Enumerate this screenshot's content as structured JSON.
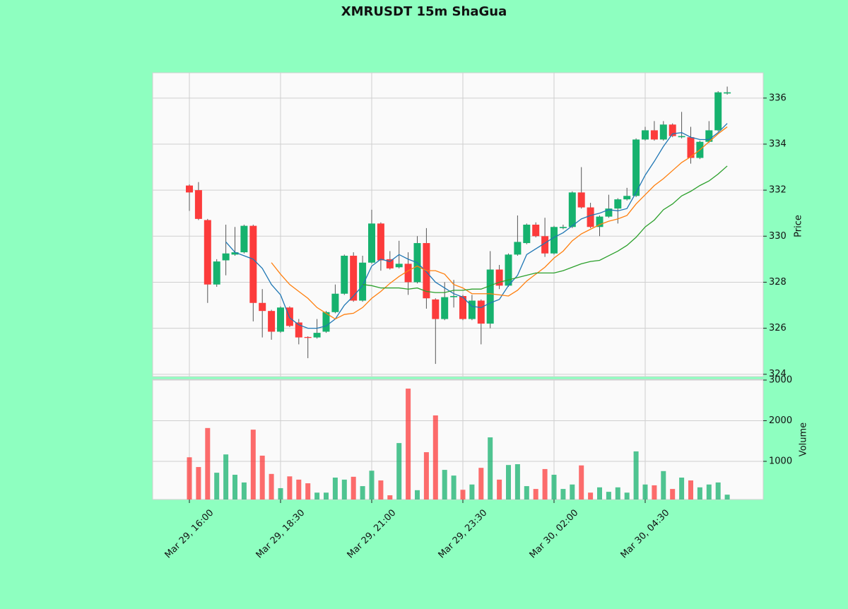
{
  "chart_data": {
    "type": "candlestick",
    "title": "XMRUSDT 15m ShaGua",
    "categories": [
      "Mar 29, 16:00",
      null,
      null,
      null,
      null,
      null,
      null,
      null,
      null,
      null,
      "Mar 29, 18:30",
      null,
      null,
      null,
      null,
      null,
      null,
      null,
      null,
      null,
      "Mar 29, 21:00",
      null,
      null,
      null,
      null,
      null,
      null,
      null,
      null,
      null,
      "Mar 29, 23:30",
      null,
      null,
      null,
      null,
      null,
      null,
      null,
      null,
      null,
      "Mar 30, 02:00",
      null,
      null,
      null,
      null,
      null,
      null,
      null,
      null,
      null,
      "Mar 30, 04:30",
      null,
      null,
      null,
      null,
      null,
      null,
      null,
      null,
      null
    ],
    "open": [
      332.2,
      332.0,
      330.7,
      327.9,
      328.95,
      329.2,
      329.3,
      330.45,
      327.1,
      326.75,
      325.85,
      326.9,
      326.25,
      325.62,
      325.6,
      325.85,
      326.7,
      327.5,
      329.15,
      327.2,
      328.85,
      330.55,
      329.0,
      328.65,
      328.8,
      328.0,
      329.7,
      327.25,
      326.4,
      327.35,
      327.4,
      326.4,
      327.2,
      326.2,
      328.55,
      327.85,
      329.2,
      329.7,
      330.5,
      330.0,
      329.25,
      330.35,
      330.4,
      331.9,
      331.25,
      330.4,
      330.85,
      331.2,
      331.6,
      331.75,
      334.2,
      334.6,
      334.2,
      334.85,
      334.3,
      334.3,
      333.4,
      334.1,
      334.6,
      336.2
    ],
    "high": [
      332.25,
      332.35,
      330.75,
      329.0,
      330.5,
      330.4,
      330.5,
      330.5,
      327.7,
      326.8,
      326.95,
      326.95,
      326.4,
      325.65,
      326.4,
      326.75,
      327.9,
      329.2,
      329.3,
      329.15,
      331.15,
      330.6,
      329.35,
      329.8,
      329.3,
      330.0,
      330.35,
      327.3,
      328.0,
      328.1,
      327.45,
      327.45,
      327.25,
      329.35,
      328.75,
      329.25,
      330.9,
      330.55,
      330.6,
      330.8,
      330.45,
      330.5,
      331.95,
      333.0,
      331.45,
      330.9,
      331.8,
      331.65,
      332.1,
      334.25,
      334.75,
      335.0,
      335.0,
      334.9,
      335.4,
      334.75,
      334.15,
      335.0,
      336.3,
      336.5
    ],
    "low": [
      331.1,
      330.7,
      327.1,
      327.8,
      328.3,
      329.15,
      329.25,
      326.3,
      325.6,
      325.5,
      325.8,
      326.05,
      325.3,
      324.7,
      325.55,
      325.8,
      326.65,
      327.45,
      327.15,
      327.15,
      328.8,
      328.5,
      328.55,
      328.6,
      327.45,
      327.95,
      326.85,
      324.45,
      326.35,
      326.9,
      326.35,
      326.35,
      325.3,
      326.0,
      327.7,
      327.8,
      329.15,
      329.65,
      329.95,
      329.1,
      329.2,
      330.3,
      330.35,
      331.2,
      330.35,
      330.0,
      330.8,
      330.55,
      331.55,
      331.7,
      334.15,
      334.15,
      334.15,
      334.3,
      334.25,
      333.15,
      333.35,
      334.05,
      334.55,
      336.15
    ],
    "close": [
      331.9,
      330.75,
      327.9,
      328.9,
      329.25,
      329.3,
      330.45,
      327.1,
      326.75,
      325.85,
      326.9,
      326.1,
      325.6,
      325.58,
      325.8,
      326.7,
      327.5,
      329.15,
      327.2,
      328.85,
      330.55,
      328.95,
      328.6,
      328.8,
      328.0,
      329.7,
      327.3,
      326.4,
      327.35,
      327.4,
      326.4,
      327.2,
      326.2,
      328.55,
      327.85,
      329.2,
      329.75,
      330.5,
      330.0,
      329.25,
      330.4,
      330.4,
      331.9,
      331.25,
      330.4,
      330.85,
      331.2,
      331.6,
      331.75,
      334.2,
      334.6,
      334.2,
      334.85,
      334.35,
      334.35,
      333.4,
      334.1,
      334.6,
      336.25,
      336.25
    ],
    "up_color": "#16b26e",
    "down_color": "#fc3b3b",
    "wick_color": "#555555",
    "ylabel": "Price",
    "ylim": [
      323.9,
      337.1
    ],
    "yticks": [
      324,
      326,
      328,
      330,
      332,
      334,
      336
    ],
    "grid": true,
    "moving_averages": [
      {
        "color": "#1f77b4",
        "values": [
          null,
          null,
          null,
          null,
          329.75,
          329.3,
          329.15,
          329.0,
          328.6,
          327.9,
          327.45,
          326.45,
          326.15,
          326.0,
          326.0,
          326.1,
          326.4,
          327.0,
          327.4,
          327.85,
          328.7,
          329.0,
          328.9,
          329.2,
          329.0,
          328.85,
          328.45,
          328.0,
          327.75,
          327.5,
          327.35,
          326.95,
          326.9,
          327.1,
          327.25,
          327.85,
          328.3,
          329.2,
          329.45,
          329.7,
          329.95,
          330.15,
          330.45,
          330.75,
          330.9,
          331.0,
          331.15,
          331.1,
          331.2,
          331.9,
          332.65,
          333.25,
          333.9,
          334.45,
          334.5,
          334.3,
          334.2,
          334.2,
          334.5,
          334.9
        ]
      },
      {
        "color": "#ff7f0e",
        "values": [
          null,
          null,
          null,
          null,
          null,
          null,
          null,
          null,
          null,
          328.85,
          328.35,
          327.9,
          327.6,
          327.3,
          326.9,
          326.65,
          326.4,
          326.6,
          326.65,
          326.9,
          327.3,
          327.6,
          327.95,
          328.25,
          328.5,
          328.7,
          328.5,
          328.5,
          328.35,
          327.9,
          327.75,
          327.5,
          327.5,
          327.5,
          327.45,
          327.4,
          327.65,
          328.05,
          328.35,
          328.65,
          329.05,
          329.35,
          329.8,
          330.1,
          330.3,
          330.5,
          330.65,
          330.75,
          330.9,
          331.4,
          331.8,
          332.2,
          332.5,
          332.85,
          333.2,
          333.45,
          333.75,
          334.1,
          334.45,
          334.75
        ]
      },
      {
        "color": "#2ca02c",
        "values": [
          null,
          null,
          null,
          null,
          null,
          null,
          null,
          null,
          null,
          null,
          null,
          null,
          null,
          null,
          null,
          null,
          null,
          null,
          null,
          327.9,
          327.85,
          327.75,
          327.75,
          327.75,
          327.7,
          327.75,
          327.6,
          327.55,
          327.55,
          327.65,
          327.65,
          327.7,
          327.7,
          327.85,
          328.0,
          328.1,
          328.2,
          328.3,
          328.4,
          328.4,
          328.4,
          328.5,
          328.65,
          328.8,
          328.9,
          328.95,
          329.15,
          329.35,
          329.6,
          329.95,
          330.4,
          330.7,
          331.15,
          331.4,
          331.75,
          331.95,
          332.2,
          332.4,
          332.7,
          333.05
        ]
      }
    ],
    "volume": {
      "ylabel": "Volume",
      "ylim": [
        61,
        3017
      ],
      "yticks": [
        1000,
        2000,
        3000
      ],
      "values": [
        1100,
        860,
        1820,
        720,
        1170,
        670,
        480,
        1780,
        1140,
        690,
        340,
        630,
        550,
        460,
        230,
        230,
        600,
        550,
        620,
        390,
        770,
        530,
        165,
        1450,
        2790,
        290,
        1225,
        2130,
        790,
        650,
        300,
        430,
        840,
        1590,
        550,
        910,
        930,
        390,
        320,
        810,
        670,
        320,
        430,
        900,
        230,
        360,
        250,
        360,
        230,
        1245,
        430,
        410,
        760,
        320,
        600,
        530,
        360,
        430,
        480,
        180
      ]
    }
  }
}
